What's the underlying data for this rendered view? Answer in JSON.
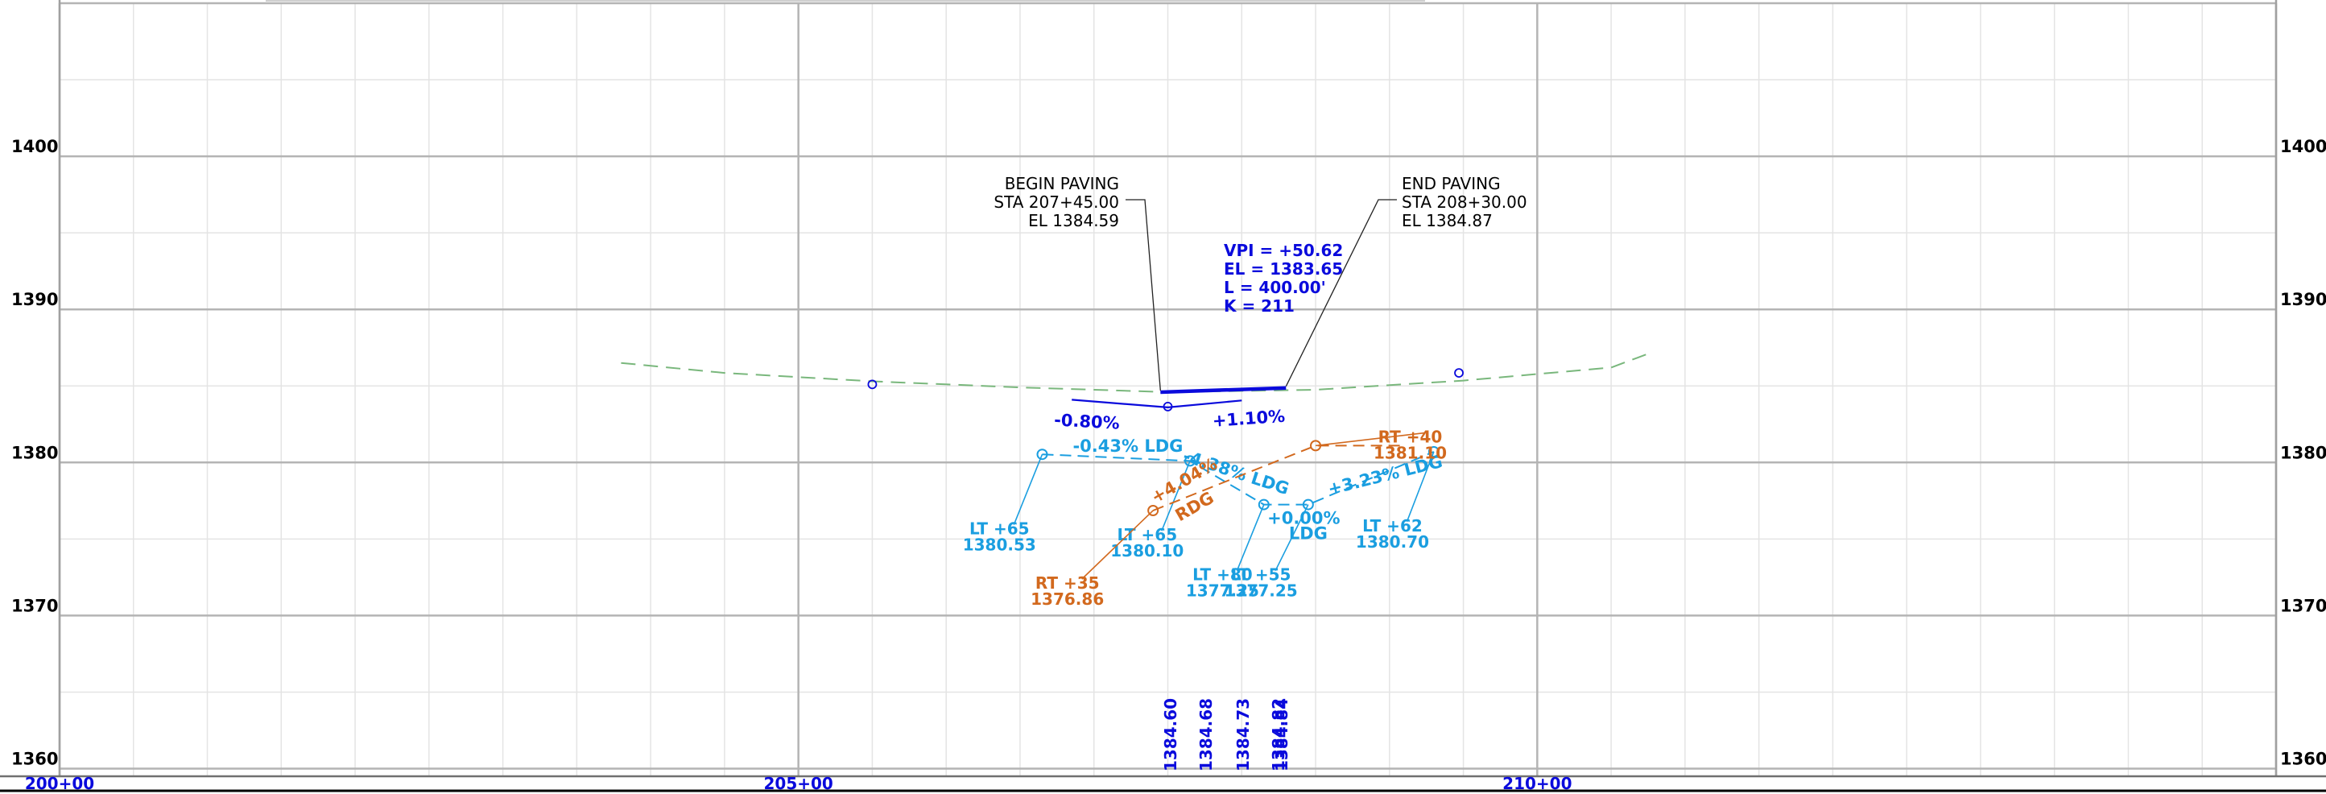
{
  "axes": {
    "elevations": [
      1360,
      1370,
      1380,
      1390,
      1400
    ],
    "stations": [
      {
        "value": 200,
        "label": "200+00"
      },
      {
        "value": 205,
        "label": "205+00"
      },
      {
        "value": 210,
        "label": "210+00"
      }
    ],
    "x_range": [
      200,
      215
    ],
    "y_range": [
      1359.5,
      1410
    ]
  },
  "colors": {
    "grid_major": "#b4b4b4",
    "grid_minor": "#e4e4e4",
    "frame": "#a0a0a0",
    "design": "#0a0adc",
    "existing": "#79b77c",
    "left_edge": "#1a9ee0",
    "right_edge": "#d2691e",
    "annotation": "#000000"
  },
  "annotations": {
    "begin_paving": {
      "lines": [
        "BEGIN PAVING",
        "STA 207+45.00",
        "EL 1384.59"
      ],
      "station": 207.45,
      "elev": 1384.59
    },
    "end_paving": {
      "lines": [
        "END PAVING",
        "STA 208+30.00",
        "EL 1384.87"
      ],
      "station": 208.3,
      "elev": 1384.87
    },
    "vpi": {
      "lines": [
        "VPI = +50.62",
        "EL = 1383.65",
        "L = 400.00'",
        "K = 211"
      ]
    }
  },
  "design_profile": {
    "grades": {
      "left": "-0.80%",
      "right": "+1.10%"
    },
    "points": [
      [
        207.45,
        1384.59
      ],
      [
        208.3,
        1384.87
      ]
    ],
    "tangents": [
      [
        206.85,
        1384.1
      ],
      [
        207.5,
        1383.6
      ],
      [
        208.0,
        1384.05
      ]
    ],
    "vpi_point": [
      207.5,
      1383.65
    ]
  },
  "existing_ground": {
    "points": [
      [
        203.8,
        1386.5
      ],
      [
        204.5,
        1385.85
      ],
      [
        205.5,
        1385.3
      ],
      [
        206.5,
        1384.9
      ],
      [
        207.5,
        1384.6
      ],
      [
        208.5,
        1384.75
      ],
      [
        209.5,
        1385.35
      ],
      [
        210.5,
        1386.2
      ],
      [
        210.75,
        1387.1
      ]
    ],
    "markers": [
      [
        205.5,
        1385.1
      ],
      [
        209.47,
        1385.85
      ]
    ]
  },
  "left_edge": {
    "segments": [
      [
        [
          206.65,
          1380.53
        ],
        [
          207.65,
          1380.1
        ],
        [
          208.15,
          1377.25
        ],
        [
          208.45,
          1377.25
        ],
        [
          209.3,
          1380.7
        ]
      ]
    ],
    "grade_labels": [
      {
        "text": "-0.43% LDG",
        "station": 207.23,
        "elev": 1380.7,
        "angle": 0
      },
      {
        "text": "-4.38% LDG",
        "station": 207.95,
        "elev": 1379.0,
        "angle": 18
      },
      {
        "text": "+0.00%",
        "station": 208.42,
        "elev": 1376.0,
        "angle": 0
      },
      {
        "text": "LDG",
        "station": 208.45,
        "elev": 1375.0,
        "angle": 0
      },
      {
        "text": "+3.23% LDG",
        "station": 208.98,
        "elev": 1378.8,
        "angle": -14
      }
    ],
    "callouts": [
      {
        "lines": [
          "LT +65",
          "1380.53"
        ],
        "anchor": [
          206.65,
          1380.53
        ],
        "label": [
          206.36,
          1375.3
        ]
      },
      {
        "lines": [
          "LT +65",
          "1380.10"
        ],
        "anchor": [
          207.65,
          1380.1
        ],
        "label": [
          207.36,
          1374.9
        ]
      },
      {
        "lines": [
          "LT +80",
          "1377.25"
        ],
        "anchor": [
          208.15,
          1377.25
        ],
        "label": [
          207.87,
          1372.3
        ]
      },
      {
        "lines": [
          "LT +55",
          "1377.25"
        ],
        "anchor": [
          208.45,
          1377.25
        ],
        "label": [
          208.13,
          1372.3
        ]
      },
      {
        "lines": [
          "LT +62",
          "1380.70"
        ],
        "anchor": [
          209.3,
          1380.7
        ],
        "label": [
          209.02,
          1375.5
        ]
      }
    ]
  },
  "right_edge": {
    "points": [
      [
        207.4,
        1376.86
      ],
      [
        208.5,
        1381.1
      ],
      [
        209.08,
        1381.1
      ]
    ],
    "grade_labels": [
      {
        "text": "+4.04%",
        "station": 207.63,
        "elev": 1378.5,
        "angle": -30
      },
      {
        "text": "RDG",
        "station": 207.7,
        "elev": 1376.8,
        "angle": -30
      }
    ],
    "callouts": [
      {
        "lines": [
          "RT +35",
          "1376.86"
        ],
        "anchor": [
          207.4,
          1376.86
        ],
        "label": [
          206.82,
          1371.75
        ]
      },
      {
        "lines": [
          "RT +40",
          "1381.10"
        ],
        "anchor": [
          208.5,
          1381.1
        ],
        "label": [
          209.14,
          1381.3
        ]
      }
    ]
  },
  "station_elevations": [
    {
      "text": "1384.60",
      "station": 207.52
    },
    {
      "text": "1384.68",
      "station": 207.76
    },
    {
      "text": "1384.73",
      "station": 208.01
    },
    {
      "text": "1384.82",
      "station": 208.25
    },
    {
      "text": "1384.84",
      "station": 208.27
    }
  ]
}
